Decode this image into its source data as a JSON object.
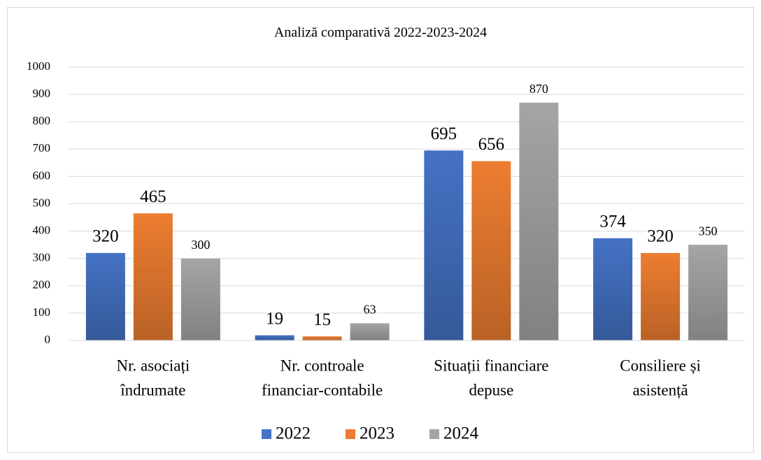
{
  "chart_data": {
    "type": "bar",
    "title": "Analiză comparativă 2022-2023-2024",
    "categories": [
      [
        "Nr. asociați",
        "îndrumate"
      ],
      [
        "Nr. controale",
        "financiar-contabile"
      ],
      [
        "Situații financiare",
        "depuse"
      ],
      [
        "Consiliere și",
        "asistență"
      ]
    ],
    "series": [
      {
        "name": "2022",
        "color": "#4472c4",
        "values": [
          320,
          19,
          695,
          374
        ]
      },
      {
        "name": "2023",
        "color": "#ed7d31",
        "values": [
          465,
          15,
          656,
          320
        ]
      },
      {
        "name": "2024",
        "color": "#a5a5a5",
        "values": [
          300,
          63,
          870,
          350
        ]
      }
    ],
    "ylim": [
      0,
      1000
    ],
    "yticks": [
      0,
      100,
      200,
      300,
      400,
      500,
      600,
      700,
      800,
      900,
      1000
    ],
    "grid": true,
    "legend": "bottom"
  }
}
